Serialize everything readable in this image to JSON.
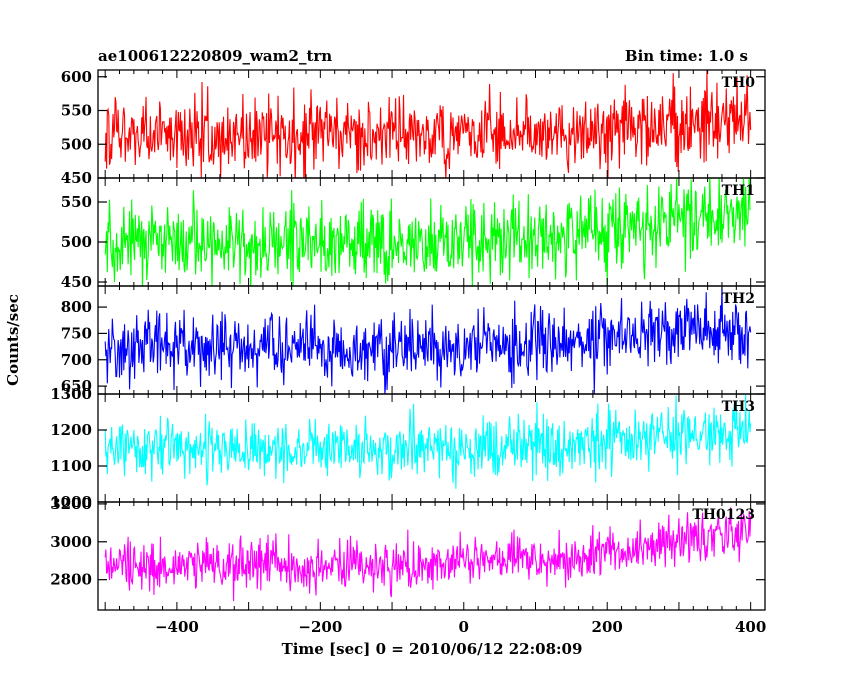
{
  "header": {
    "title": "ae100612220809_wam2_trn",
    "bin_time": "Bin time: 1.0 s"
  },
  "chart_data": {
    "type": "line",
    "xlabel": "Time [sec] 0 = 2010/06/12 22:08:09",
    "ylabel": "Counts/sec",
    "xlim": [
      -510,
      420
    ],
    "xticks": [
      -400,
      -200,
      0,
      200,
      400
    ],
    "x_step": 1.0,
    "x_range": [
      -500,
      400
    ],
    "panels": [
      {
        "name": "TH0",
        "color": "#ff0000",
        "ylim": [
          450,
          610
        ],
        "yticks": [
          450,
          500,
          550,
          600
        ],
        "trend": [
          [
            -500,
            515
          ],
          [
            -100,
            512
          ],
          [
            150,
            518
          ],
          [
            300,
            530
          ],
          [
            400,
            540
          ]
        ],
        "noise_sd": 28
      },
      {
        "name": "TH1",
        "color": "#00ff00",
        "ylim": [
          445,
          580
        ],
        "yticks": [
          450,
          500,
          550
        ],
        "trend": [
          [
            -500,
            497
          ],
          [
            -100,
            497
          ],
          [
            150,
            510
          ],
          [
            300,
            525
          ],
          [
            400,
            535
          ]
        ],
        "noise_sd": 25
      },
      {
        "name": "TH2",
        "color": "#0000ff",
        "ylim": [
          635,
          840
        ],
        "yticks": [
          650,
          700,
          750,
          800
        ],
        "trend": [
          [
            -500,
            725
          ],
          [
            -100,
            720
          ],
          [
            150,
            732
          ],
          [
            300,
            755
          ],
          [
            400,
            765
          ]
        ],
        "noise_sd": 32
      },
      {
        "name": "TH3",
        "color": "#00ffff",
        "ylim": [
          1000,
          1300
        ],
        "yticks": [
          1000,
          1100,
          1200,
          1300
        ],
        "trend": [
          [
            -500,
            1150
          ],
          [
            -100,
            1145
          ],
          [
            150,
            1165
          ],
          [
            300,
            1185
          ],
          [
            400,
            1205
          ]
        ],
        "noise_sd": 40
      },
      {
        "name": "TH0123",
        "color": "#ff00ff",
        "ylim": [
          2640,
          3210
        ],
        "yticks": [
          2800,
          3000,
          3200
        ],
        "trend": [
          [
            -500,
            2880
          ],
          [
            -100,
            2870
          ],
          [
            150,
            2910
          ],
          [
            300,
            3000
          ],
          [
            400,
            3060
          ]
        ],
        "noise_sd": 65
      }
    ]
  }
}
